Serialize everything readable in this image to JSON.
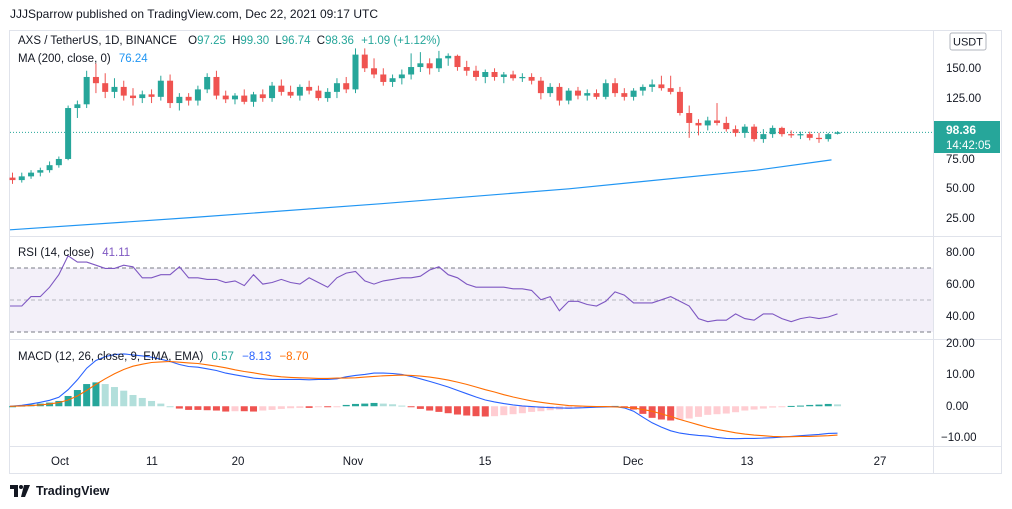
{
  "header": {
    "published_line": "JJJSparrow published on TradingView.com, Dec 22, 2021 09:17 UTC"
  },
  "footer": {
    "brand": "TradingView"
  },
  "colors": {
    "up": "#26a69a",
    "down": "#ef5350",
    "ma": "#2196f3",
    "rsi": "#7e57c2",
    "macd": "#2962ff",
    "signal": "#ff6d00",
    "hist_up_strong": "#26a69a",
    "hist_up_weak": "#b2dfdb",
    "hist_down_strong": "#ef5350",
    "hist_down_weak": "#ffcdd2",
    "last_price_bg": "#26a69a"
  },
  "legend": {
    "symbol": "AXS / TetherUS, 1D, BINANCE",
    "o_label": "O",
    "o_value": "97.25",
    "h_label": "H",
    "h_value": "99.30",
    "l_label": "L",
    "l_value": "96.74",
    "c_label": "C",
    "c_value": "98.36",
    "change": "+1.09 (+1.12%)",
    "ma_label": "MA (200, close, 0)",
    "ma_value": "76.24",
    "rsi_label": "RSI (14, close)",
    "rsi_value": "41.11",
    "macd_label": "MACD (12, 26, close, 9, EMA, EMA)",
    "macd_hist_value": "0.57",
    "macd_value": "−8.13",
    "signal_value": "−8.70"
  },
  "price_axis": {
    "currency": "USDT",
    "ticks": [
      "150.00",
      "125.00",
      "75.00",
      "50.00",
      "25.00"
    ],
    "last_price": "98.36",
    "countdown": "14:42:05"
  },
  "rsi_axis": {
    "ticks": [
      "80.00",
      "60.00",
      "40.00"
    ]
  },
  "macd_axis": {
    "ticks": [
      "20.00",
      "10.00",
      "0.00",
      "−10.00"
    ]
  },
  "x_axis": {
    "ticks": [
      "Oct",
      "11",
      "20",
      "Nov",
      "15",
      "Dec",
      "13",
      "27"
    ]
  },
  "chart_data": [
    {
      "type": "candlestick",
      "title": "AXS / TetherUS, 1D, BINANCE",
      "x_range": [
        "2021-09-24",
        "2021-12-22"
      ],
      "ylim": [
        15,
        180
      ],
      "candles": [
        {
          "o": 62,
          "h": 66,
          "l": 57,
          "c": 60
        },
        {
          "o": 60,
          "h": 66,
          "l": 58,
          "c": 63
        },
        {
          "o": 63,
          "h": 68,
          "l": 61,
          "c": 66
        },
        {
          "o": 66,
          "h": 70,
          "l": 63,
          "c": 68
        },
        {
          "o": 68,
          "h": 75,
          "l": 66,
          "c": 72
        },
        {
          "o": 72,
          "h": 79,
          "l": 70,
          "c": 77
        },
        {
          "o": 77,
          "h": 120,
          "l": 76,
          "c": 118
        },
        {
          "o": 118,
          "h": 124,
          "l": 110,
          "c": 121
        },
        {
          "o": 121,
          "h": 148,
          "l": 118,
          "c": 143
        },
        {
          "o": 143,
          "h": 154,
          "l": 130,
          "c": 138
        },
        {
          "o": 138,
          "h": 146,
          "l": 126,
          "c": 131
        },
        {
          "o": 131,
          "h": 142,
          "l": 126,
          "c": 135
        },
        {
          "o": 135,
          "h": 140,
          "l": 124,
          "c": 128
        },
        {
          "o": 128,
          "h": 134,
          "l": 120,
          "c": 126
        },
        {
          "o": 126,
          "h": 132,
          "l": 122,
          "c": 129
        },
        {
          "o": 129,
          "h": 133,
          "l": 122,
          "c": 127
        },
        {
          "o": 127,
          "h": 144,
          "l": 124,
          "c": 140
        },
        {
          "o": 140,
          "h": 145,
          "l": 118,
          "c": 122
        },
        {
          "o": 122,
          "h": 130,
          "l": 116,
          "c": 127
        },
        {
          "o": 127,
          "h": 130,
          "l": 120,
          "c": 124
        },
        {
          "o": 124,
          "h": 136,
          "l": 120,
          "c": 133
        },
        {
          "o": 133,
          "h": 146,
          "l": 130,
          "c": 143
        },
        {
          "o": 143,
          "h": 148,
          "l": 125,
          "c": 128
        },
        {
          "o": 128,
          "h": 132,
          "l": 122,
          "c": 125
        },
        {
          "o": 125,
          "h": 130,
          "l": 121,
          "c": 128
        },
        {
          "o": 128,
          "h": 133,
          "l": 121,
          "c": 123
        },
        {
          "o": 123,
          "h": 131,
          "l": 119,
          "c": 129
        },
        {
          "o": 129,
          "h": 133,
          "l": 123,
          "c": 126
        },
        {
          "o": 126,
          "h": 139,
          "l": 123,
          "c": 136
        },
        {
          "o": 136,
          "h": 141,
          "l": 128,
          "c": 131
        },
        {
          "o": 131,
          "h": 136,
          "l": 126,
          "c": 128
        },
        {
          "o": 128,
          "h": 137,
          "l": 124,
          "c": 135
        },
        {
          "o": 135,
          "h": 140,
          "l": 129,
          "c": 132
        },
        {
          "o": 132,
          "h": 136,
          "l": 124,
          "c": 126
        },
        {
          "o": 126,
          "h": 134,
          "l": 123,
          "c": 131
        },
        {
          "o": 131,
          "h": 142,
          "l": 126,
          "c": 138
        },
        {
          "o": 138,
          "h": 143,
          "l": 130,
          "c": 133
        },
        {
          "o": 133,
          "h": 166,
          "l": 130,
          "c": 161
        },
        {
          "o": 161,
          "h": 166,
          "l": 147,
          "c": 150
        },
        {
          "o": 150,
          "h": 158,
          "l": 142,
          "c": 145
        },
        {
          "o": 145,
          "h": 150,
          "l": 136,
          "c": 139
        },
        {
          "o": 139,
          "h": 145,
          "l": 135,
          "c": 142
        },
        {
          "o": 142,
          "h": 149,
          "l": 137,
          "c": 145
        },
        {
          "o": 145,
          "h": 162,
          "l": 141,
          "c": 151
        },
        {
          "o": 151,
          "h": 163,
          "l": 147,
          "c": 154
        },
        {
          "o": 154,
          "h": 158,
          "l": 145,
          "c": 150
        },
        {
          "o": 150,
          "h": 164,
          "l": 147,
          "c": 158
        },
        {
          "o": 158,
          "h": 162,
          "l": 152,
          "c": 160
        },
        {
          "o": 160,
          "h": 161,
          "l": 148,
          "c": 151
        },
        {
          "o": 151,
          "h": 156,
          "l": 144,
          "c": 148
        },
        {
          "o": 148,
          "h": 152,
          "l": 140,
          "c": 143
        },
        {
          "o": 143,
          "h": 149,
          "l": 138,
          "c": 147
        },
        {
          "o": 147,
          "h": 150,
          "l": 140,
          "c": 143
        },
        {
          "o": 143,
          "h": 147,
          "l": 138,
          "c": 145
        },
        {
          "o": 145,
          "h": 148,
          "l": 140,
          "c": 142
        },
        {
          "o": 142,
          "h": 146,
          "l": 139,
          "c": 143
        },
        {
          "o": 143,
          "h": 146,
          "l": 137,
          "c": 140
        },
        {
          "o": 140,
          "h": 143,
          "l": 125,
          "c": 130
        },
        {
          "o": 130,
          "h": 138,
          "l": 127,
          "c": 135
        },
        {
          "o": 135,
          "h": 138,
          "l": 120,
          "c": 124
        },
        {
          "o": 124,
          "h": 134,
          "l": 121,
          "c": 132
        },
        {
          "o": 132,
          "h": 135,
          "l": 125,
          "c": 128
        },
        {
          "o": 128,
          "h": 133,
          "l": 124,
          "c": 130
        },
        {
          "o": 130,
          "h": 133,
          "l": 125,
          "c": 127
        },
        {
          "o": 127,
          "h": 141,
          "l": 125,
          "c": 138
        },
        {
          "o": 138,
          "h": 142,
          "l": 127,
          "c": 130
        },
        {
          "o": 130,
          "h": 134,
          "l": 124,
          "c": 127
        },
        {
          "o": 127,
          "h": 134,
          "l": 124,
          "c": 132
        },
        {
          "o": 132,
          "h": 137,
          "l": 128,
          "c": 135
        },
        {
          "o": 135,
          "h": 141,
          "l": 131,
          "c": 137
        },
        {
          "o": 137,
          "h": 144,
          "l": 132,
          "c": 134
        },
        {
          "o": 134,
          "h": 144,
          "l": 129,
          "c": 131
        },
        {
          "o": 131,
          "h": 135,
          "l": 112,
          "c": 114
        },
        {
          "o": 114,
          "h": 120,
          "l": 94,
          "c": 106
        },
        {
          "o": 106,
          "h": 109,
          "l": 96,
          "c": 104
        },
        {
          "o": 104,
          "h": 111,
          "l": 100,
          "c": 108
        },
        {
          "o": 108,
          "h": 122,
          "l": 104,
          "c": 106
        },
        {
          "o": 106,
          "h": 111,
          "l": 99,
          "c": 101
        },
        {
          "o": 101,
          "h": 104,
          "l": 95,
          "c": 98
        },
        {
          "o": 98,
          "h": 105,
          "l": 94,
          "c": 103
        },
        {
          "o": 103,
          "h": 105,
          "l": 91,
          "c": 93
        },
        {
          "o": 93,
          "h": 101,
          "l": 90,
          "c": 97
        },
        {
          "o": 97,
          "h": 104,
          "l": 94,
          "c": 102
        },
        {
          "o": 102,
          "h": 103,
          "l": 95,
          "c": 97
        },
        {
          "o": 97,
          "h": 100,
          "l": 94,
          "c": 96
        },
        {
          "o": 96,
          "h": 99,
          "l": 93,
          "c": 97
        },
        {
          "o": 97,
          "h": 99,
          "l": 92,
          "c": 94
        },
        {
          "o": 94,
          "h": 98,
          "l": 90,
          "c": 93
        },
        {
          "o": 93,
          "h": 98,
          "l": 91,
          "c": 97
        },
        {
          "o": 97.25,
          "h": 99.3,
          "l": 96.74,
          "c": 98.36
        }
      ]
    },
    {
      "type": "line",
      "title": "MA (200, close, 0)",
      "ylim": [
        15,
        180
      ],
      "x": [
        0,
        20,
        40,
        60,
        80,
        88
      ],
      "values": [
        20,
        30,
        41,
        53,
        68,
        76.24
      ]
    },
    {
      "type": "line",
      "title": "RSI (14, close)",
      "ylim": [
        25,
        90
      ],
      "bands": [
        70,
        50,
        30
      ],
      "values": [
        46,
        46,
        52,
        52,
        58,
        66,
        78,
        74,
        74,
        72,
        70,
        70,
        72,
        71,
        64,
        64,
        66,
        66,
        71,
        64,
        64,
        63,
        63,
        61,
        62,
        59,
        66,
        60,
        61,
        63,
        61,
        60,
        64,
        61,
        58,
        64,
        67,
        68,
        62,
        60,
        62,
        63,
        64,
        64,
        65,
        69,
        71,
        66,
        64,
        60,
        58,
        58,
        58,
        58,
        57,
        57,
        56,
        50,
        52,
        43,
        49,
        49,
        47,
        46,
        49,
        55,
        53,
        48,
        48,
        48,
        50,
        52,
        49,
        46,
        38,
        36,
        37,
        37,
        41,
        38,
        37,
        41,
        41,
        38,
        36,
        38,
        39,
        38,
        39,
        41
      ]
    },
    {
      "type": "line_and_histogram",
      "title": "MACD (12, 26, close, 9, EMA, EMA)",
      "ylim": [
        -12,
        20
      ],
      "macd": [
        0,
        0.3,
        0.7,
        1.2,
        1.8,
        2.7,
        5,
        8,
        11.5,
        13.8,
        15,
        15.6,
        15.8,
        15.5,
        15.2,
        14.8,
        14.2,
        13.5,
        12.6,
        12,
        11.8,
        11.3,
        10.8,
        10,
        9.5,
        9,
        8.5,
        8.3,
        8.1,
        8.1,
        8.1,
        8.1,
        8,
        8.1,
        8.1,
        8.3,
        8.9,
        9.3,
        9.6,
        10,
        10,
        9.9,
        9.6,
        9,
        8.3,
        7.5,
        6.7,
        5.8,
        4.8,
        3.8,
        2.8,
        1.9,
        1.3,
        0.8,
        0.4,
        0.1,
        -0.1,
        -0.3,
        -0.4,
        -0.5,
        -0.6,
        -0.5,
        -0.4,
        -0.3,
        -0.2,
        -0.1,
        -0.5,
        -1.5,
        -3.3,
        -5,
        -6.3,
        -7.4,
        -8.1,
        -8.5,
        -8.8,
        -9,
        -9.4,
        -9.7,
        -9.8,
        -9.7,
        -9.7,
        -9.6,
        -9.5,
        -9.3,
        -9.1,
        -8.9,
        -8.7,
        -8.5,
        -8.2,
        -8.13
      ],
      "signal": [
        0,
        0.1,
        0.2,
        0.4,
        0.7,
        1.1,
        1.9,
        3.1,
        4.8,
        6.6,
        8.3,
        9.8,
        11.1,
        12.1,
        12.7,
        13.2,
        13.4,
        13.5,
        13.3,
        13.1,
        12.9,
        12.5,
        12.1,
        11.6,
        11,
        10.5,
        10.1,
        9.6,
        9.2,
        8.9,
        8.7,
        8.6,
        8.5,
        8.4,
        8.4,
        8.5,
        8.5,
        8.6,
        8.8,
        9,
        9.2,
        9.3,
        9.4,
        9.3,
        9.1,
        8.8,
        8.4,
        7.9,
        7.3,
        6.6,
        5.8,
        5,
        4.3,
        3.5,
        2.8,
        2.2,
        1.6,
        1.2,
        0.8,
        0.5,
        0.2,
        0.1,
        0,
        -0.1,
        -0.1,
        -0.2,
        -0.3,
        -0.5,
        -1,
        -1.5,
        -2.3,
        -3.1,
        -4,
        -4.8,
        -5.6,
        -6.4,
        -7,
        -7.5,
        -8,
        -8.4,
        -8.7,
        -8.9,
        -9.1,
        -9.2,
        -9.2,
        -9.1,
        -9.1,
        -9,
        -8.9,
        -8.7
      ],
      "histogram": [
        0,
        0.2,
        0.5,
        0.8,
        1.1,
        1.6,
        3.1,
        4.9,
        6.7,
        7.2,
        6.7,
        5.8,
        4.7,
        3.4,
        2.5,
        1.6,
        0.8,
        0,
        -0.7,
        -1.1,
        -1.1,
        -1.2,
        -1.3,
        -1.6,
        -1.5,
        -1.5,
        -1.6,
        -1.3,
        -1.1,
        -0.8,
        -0.6,
        -0.5,
        -0.5,
        -0.3,
        -0.3,
        -0.2,
        0.4,
        0.7,
        0.8,
        1,
        0.8,
        0.6,
        0.2,
        -0.3,
        -0.8,
        -1.3,
        -1.7,
        -2.1,
        -2.5,
        -2.8,
        -3,
        -3.1,
        -3,
        -2.7,
        -2.4,
        -2.1,
        -1.7,
        -1.5,
        -1.2,
        -1,
        -0.8,
        -0.6,
        -0.4,
        -0.2,
        -0.1,
        0.1,
        -0.2,
        -1,
        -2.3,
        -3.5,
        -4,
        -4.3,
        -4.1,
        -3.7,
        -3.2,
        -2.6,
        -2.4,
        -2.2,
        -1.8,
        -1.3,
        -1,
        -0.7,
        -0.4,
        -0.1,
        0.1,
        0.2,
        0.4,
        0.5,
        0.7,
        0.57
      ]
    }
  ]
}
